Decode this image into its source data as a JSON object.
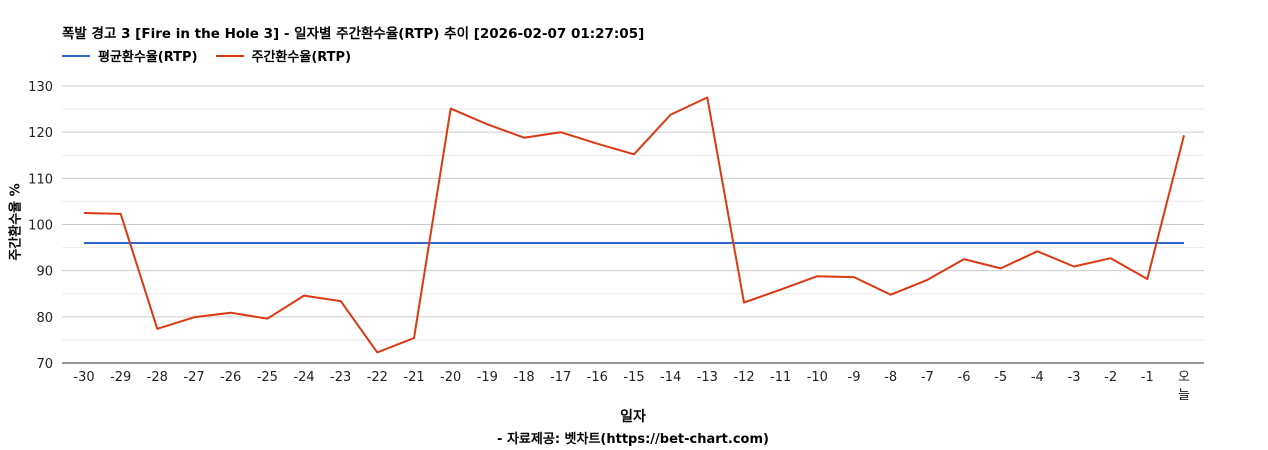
{
  "chart_data": {
    "type": "line",
    "title": "폭발 경고 3 [Fire in the Hole 3] - 일자별 주간환수율(RTP) 추이 [2026-02-07 01:27:05]",
    "xlabel": "일자",
    "ylabel": "주간환수율 %",
    "source": "- 자료제공: 벳차트(https://bet-chart.com)",
    "ylim": [
      70,
      130
    ],
    "yticks": [
      70,
      80,
      90,
      100,
      110,
      120,
      130
    ],
    "grid": true,
    "legend_position": "top-left",
    "categories": [
      "-30",
      "-29",
      "-28",
      "-27",
      "-26",
      "-25",
      "-24",
      "-23",
      "-22",
      "-21",
      "-20",
      "-19",
      "-18",
      "-17",
      "-16",
      "-15",
      "-14",
      "-13",
      "-12",
      "-11",
      "-10",
      "-9",
      "-8",
      "-7",
      "-6",
      "-5",
      "-4",
      "-3",
      "-2",
      "-1",
      "오늘"
    ],
    "series": [
      {
        "name": "평균환수율(RTP)",
        "color": "#3366cc",
        "values": [
          96,
          96,
          96,
          96,
          96,
          96,
          96,
          96,
          96,
          96,
          96,
          96,
          96,
          96,
          96,
          96,
          96,
          96,
          96,
          96,
          96,
          96,
          96,
          96,
          96,
          96,
          96,
          96,
          96,
          96,
          96
        ]
      },
      {
        "name": "주간환수율(RTP)",
        "color": "#dc3912",
        "values": [
          102.5,
          102.3,
          77.4,
          79.9,
          80.9,
          79.6,
          84.6,
          83.4,
          72.3,
          75.4,
          125.1,
          121.7,
          118.8,
          120.0,
          117.5,
          115.2,
          123.8,
          127.5,
          83.1,
          85.9,
          88.8,
          88.6,
          84.8,
          88.0,
          92.5,
          90.5,
          94.2,
          90.9,
          92.7,
          88.2,
          119.3
        ]
      }
    ]
  }
}
